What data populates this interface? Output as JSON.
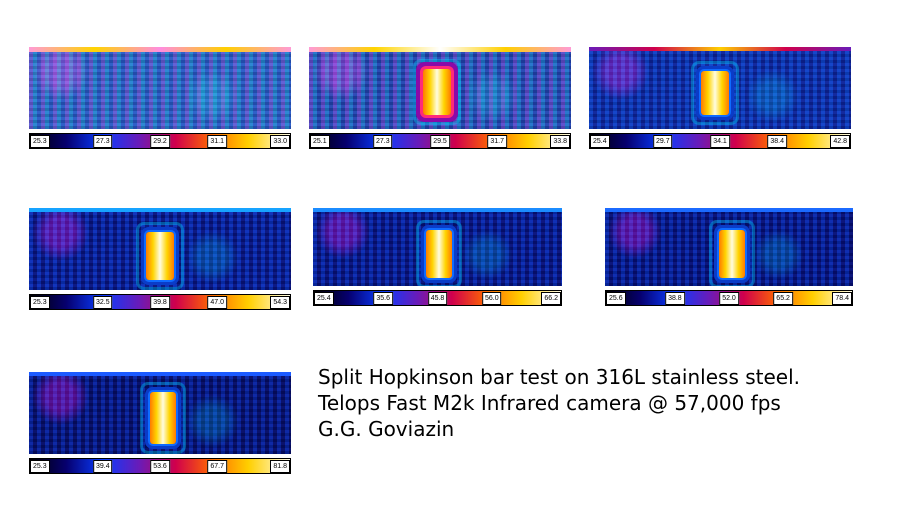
{
  "panels": [
    {
      "ticks": [
        "25.3",
        "27.3",
        "29.2",
        "31.1",
        "33.0"
      ]
    },
    {
      "ticks": [
        "25.1",
        "27.3",
        "29.5",
        "31.7",
        "33.8"
      ]
    },
    {
      "ticks": [
        "25.4",
        "29.7",
        "34.1",
        "38.4",
        "42.8"
      ]
    },
    {
      "ticks": [
        "25.3",
        "32.5",
        "39.8",
        "47.0",
        "54.3"
      ]
    },
    {
      "ticks": [
        "25.4",
        "35.6",
        "45.8",
        "56.0",
        "66.2"
      ]
    },
    {
      "ticks": [
        "25.6",
        "38.8",
        "52.0",
        "65.2",
        "78.4"
      ]
    },
    {
      "ticks": [
        "25.3",
        "39.4",
        "53.6",
        "67.7",
        "81.8"
      ]
    }
  ],
  "caption": {
    "line1": "Split Hopkinson bar test on 316L stainless steel.",
    "line2": "Telops Fast M2k Infrared camera @ 57,000 fps",
    "line3": "G.G. Goviazin"
  },
  "colors": {
    "background": "#ffffff",
    "colormap": [
      "#000000",
      "#06006f",
      "#0a3cff",
      "#6a1bb8",
      "#d0004c",
      "#ff6a00",
      "#ffcf00",
      "#fffce6"
    ]
  }
}
